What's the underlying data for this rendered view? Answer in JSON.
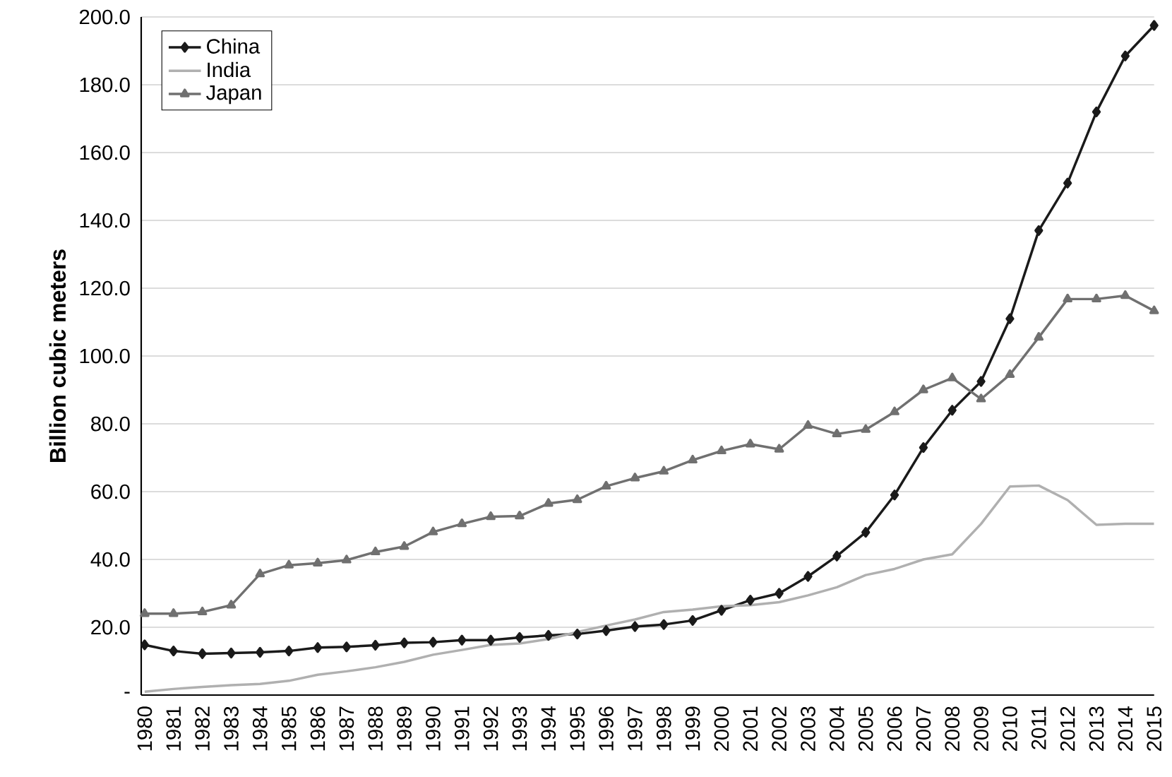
{
  "chart_data": {
    "type": "line",
    "ylabel": "Billion cubic meters",
    "categories": [
      "1980",
      "1981",
      "1982",
      "1983",
      "1984",
      "1985",
      "1986",
      "1987",
      "1988",
      "1989",
      "1990",
      "1991",
      "1992",
      "1993",
      "1994",
      "1995",
      "1996",
      "1997",
      "1998",
      "1999",
      "2000",
      "2001",
      "2002",
      "2003",
      "2004",
      "2005",
      "2006",
      "2007",
      "2008",
      "2009",
      "2010",
      "2011",
      "2012",
      "2013",
      "2014",
      "2015"
    ],
    "series": [
      {
        "name": "China",
        "color": "#1a1a1a",
        "marker": "diamond",
        "values": [
          14.8,
          13.0,
          12.2,
          12.4,
          12.6,
          13.0,
          14.0,
          14.2,
          14.7,
          15.4,
          15.6,
          16.2,
          16.2,
          17.0,
          17.6,
          18.0,
          19.0,
          20.2,
          20.8,
          22.0,
          25.0,
          28.0,
          30.0,
          35.0,
          41.0,
          48.0,
          59.0,
          73.0,
          84.0,
          92.5,
          111.0,
          137.0,
          151.0,
          172.0,
          188.5,
          197.5
        ]
      },
      {
        "name": "India",
        "color": "#b0b0b0",
        "marker": "none",
        "values": [
          1.0,
          1.8,
          2.4,
          2.9,
          3.3,
          4.2,
          6.0,
          7.0,
          8.2,
          9.8,
          11.9,
          13.3,
          14.8,
          15.2,
          16.5,
          18.6,
          20.5,
          22.3,
          24.5,
          25.2,
          26.2,
          26.5,
          27.4,
          29.4,
          31.8,
          35.4,
          37.2,
          40.0,
          41.5,
          50.5,
          61.5,
          61.8,
          57.5,
          50.2,
          50.5,
          50.5
        ]
      },
      {
        "name": "Japan",
        "color": "#707070",
        "marker": "triangle",
        "values": [
          24.0,
          24.0,
          24.5,
          26.5,
          35.7,
          38.3,
          38.9,
          39.8,
          42.2,
          43.8,
          48.1,
          50.5,
          52.6,
          52.8,
          56.5,
          57.6,
          61.6,
          64.0,
          66.0,
          69.3,
          72.0,
          74.0,
          72.5,
          79.5,
          77.0,
          78.3,
          83.5,
          90.0,
          93.5,
          87.3,
          94.5,
          105.5,
          116.8,
          116.8,
          117.8,
          113.3
        ]
      }
    ],
    "ylim": [
      0,
      200
    ],
    "yticks": [
      {
        "value": 0,
        "label": "-"
      },
      {
        "value": 20,
        "label": "20.0"
      },
      {
        "value": 40,
        "label": "40.0"
      },
      {
        "value": 60,
        "label": "60.0"
      },
      {
        "value": 80,
        "label": "80.0"
      },
      {
        "value": 100,
        "label": "100.0"
      },
      {
        "value": 120,
        "label": "120.0"
      },
      {
        "value": 140,
        "label": "140.0"
      },
      {
        "value": 160,
        "label": "160.0"
      },
      {
        "value": 180,
        "label": "180.0"
      },
      {
        "value": 200,
        "label": "200.0"
      }
    ],
    "grid": "y",
    "legend": "top left",
    "line_style": "solid"
  }
}
